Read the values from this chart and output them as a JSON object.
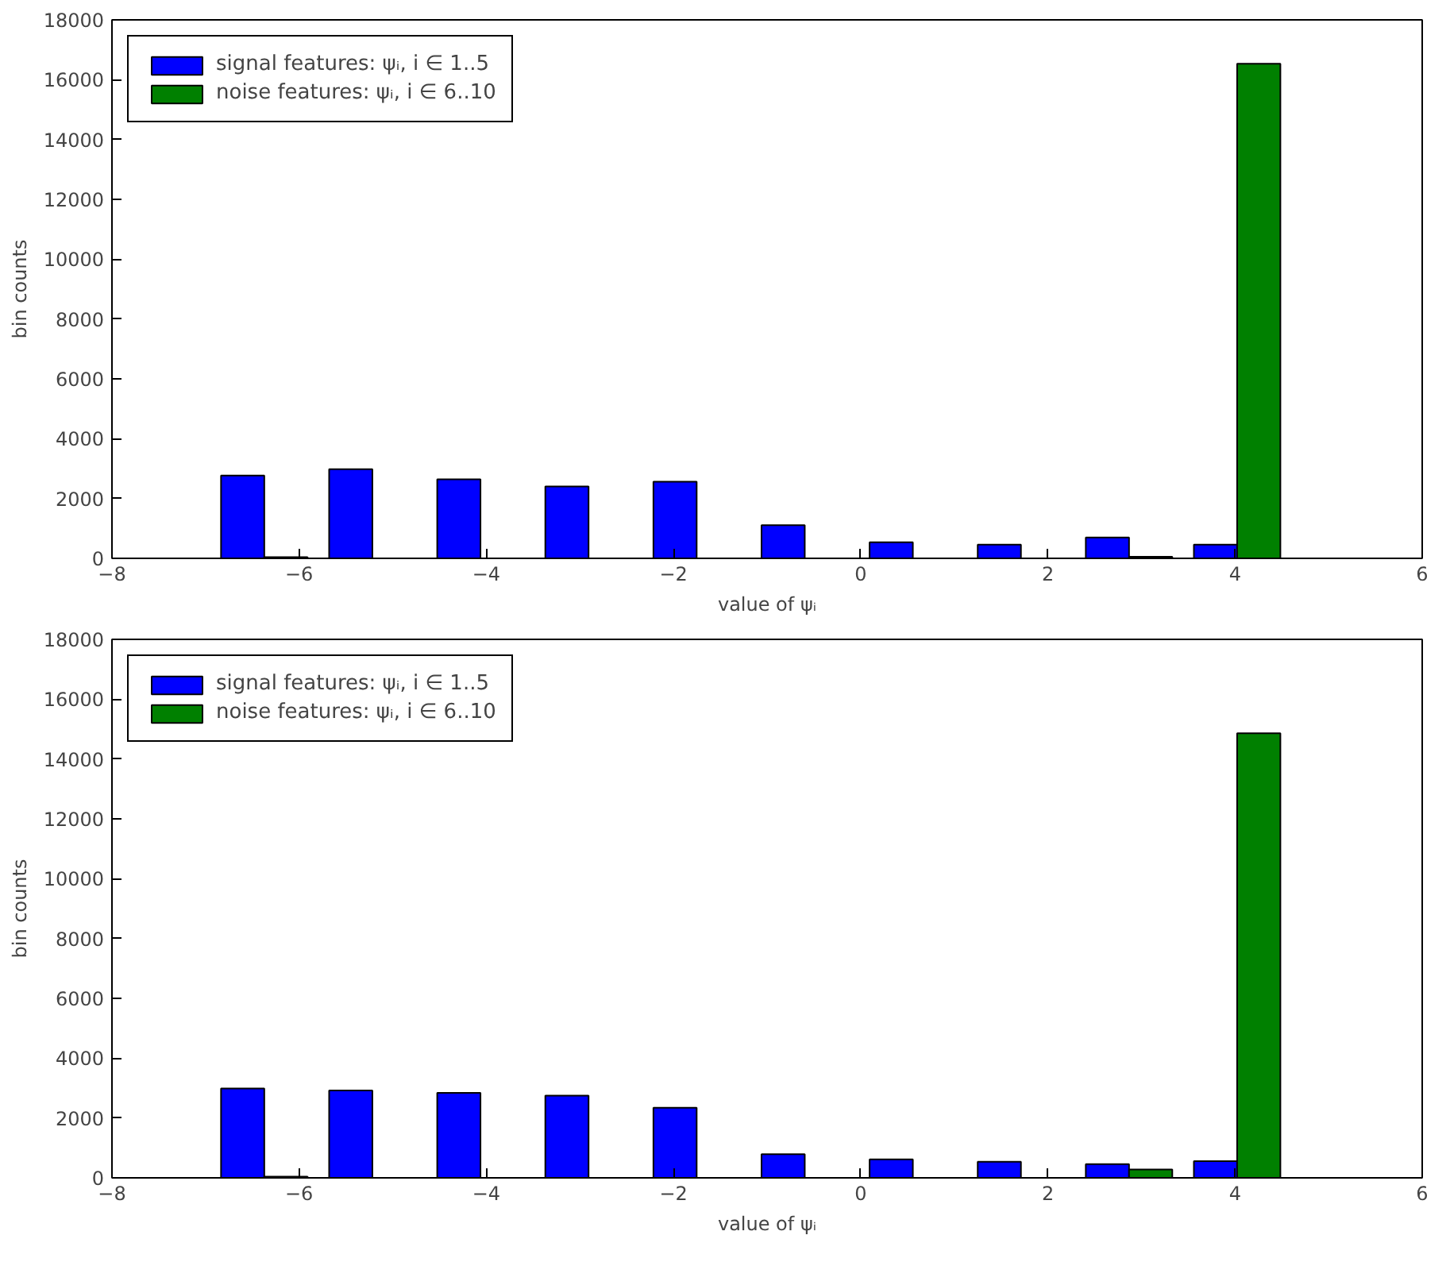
{
  "chart_data": [
    {
      "type": "histogram",
      "xlabel": "value of ψᵢ",
      "ylabel": "bin counts",
      "bins": [
        -6.95,
        -5.795,
        -4.64,
        -3.485,
        -2.33,
        -1.175,
        -0.02,
        1.135,
        2.29,
        3.445,
        4.6
      ],
      "series": [
        {
          "name": "signal features: ψᵢ, i ∈ 1..5",
          "color": "#0000ff",
          "values": [
            2770,
            2980,
            2640,
            2400,
            2560,
            1110,
            540,
            460,
            700,
            460
          ]
        },
        {
          "name": "noise features: ψᵢ, i ∈ 6..10",
          "color": "#008000",
          "values": [
            40,
            0,
            0,
            0,
            0,
            0,
            0,
            0,
            50,
            16530
          ]
        }
      ],
      "xlim": [
        -8,
        6
      ],
      "xticks": [
        {
          "value": -8,
          "label": "−8"
        },
        {
          "value": -6,
          "label": "−6"
        },
        {
          "value": -4,
          "label": "−4"
        },
        {
          "value": -2,
          "label": "−2"
        },
        0,
        2,
        4,
        6
      ],
      "ylim": [
        0,
        18000
      ],
      "yticks": [
        0,
        2000,
        4000,
        6000,
        8000,
        10000,
        12000,
        14000,
        16000,
        18000
      ],
      "legend": "top left",
      "grid": false
    },
    {
      "type": "histogram",
      "xlabel": "value of ψᵢ",
      "ylabel": "bin counts",
      "bins": [
        -6.95,
        -5.795,
        -4.64,
        -3.485,
        -2.33,
        -1.175,
        -0.02,
        1.135,
        2.29,
        3.445,
        4.6
      ],
      "series": [
        {
          "name": "signal features: ψᵢ, i ∈ 1..5",
          "color": "#0000ff",
          "values": [
            2990,
            2920,
            2840,
            2750,
            2340,
            790,
            620,
            540,
            460,
            560
          ]
        },
        {
          "name": "noise features: ψᵢ, i ∈ 6..10",
          "color": "#008000",
          "values": [
            40,
            0,
            0,
            0,
            0,
            0,
            0,
            0,
            280,
            14860
          ]
        }
      ],
      "xlim": [
        -8,
        6
      ],
      "xticks": [
        {
          "value": -8,
          "label": "−8"
        },
        {
          "value": -6,
          "label": "−6"
        },
        {
          "value": -4,
          "label": "−4"
        },
        {
          "value": -2,
          "label": "−2"
        },
        0,
        2,
        4,
        6
      ],
      "ylim": [
        0,
        18000
      ],
      "yticks": [
        0,
        2000,
        4000,
        6000,
        8000,
        10000,
        12000,
        14000,
        16000,
        18000
      ],
      "legend": "top left",
      "grid": false
    }
  ]
}
